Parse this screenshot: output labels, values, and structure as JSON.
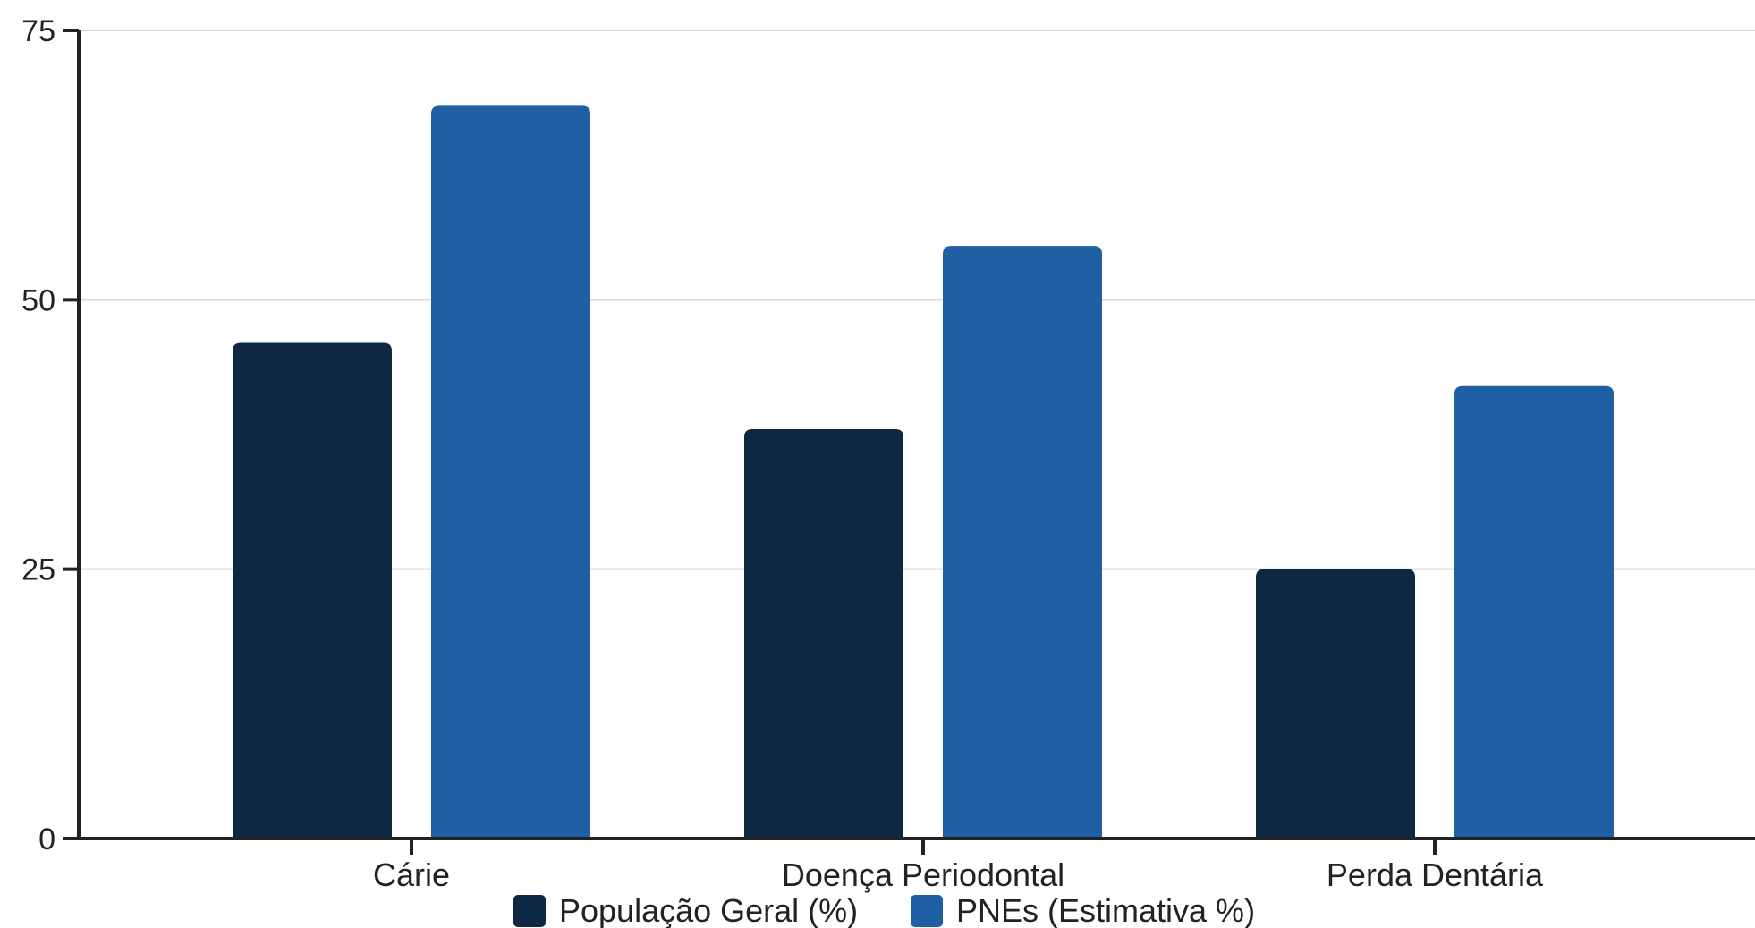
{
  "chart_data": {
    "type": "bar",
    "categories": [
      "Cárie",
      "Doença Periodontal",
      "Perda Dentária"
    ],
    "series": [
      {
        "name": "População Geral (%)",
        "values": [
          46,
          38,
          25
        ],
        "color": "#0e2742"
      },
      {
        "name": "PNEs (Estimativa %)",
        "values": [
          68,
          55,
          42
        ],
        "color": "#1f5fa3"
      }
    ],
    "title": "",
    "xlabel": "",
    "ylabel": "",
    "ylim": [
      0,
      75
    ],
    "yticks": [
      0,
      25,
      50,
      75
    ],
    "grid": true,
    "legend_position": "bottom"
  }
}
